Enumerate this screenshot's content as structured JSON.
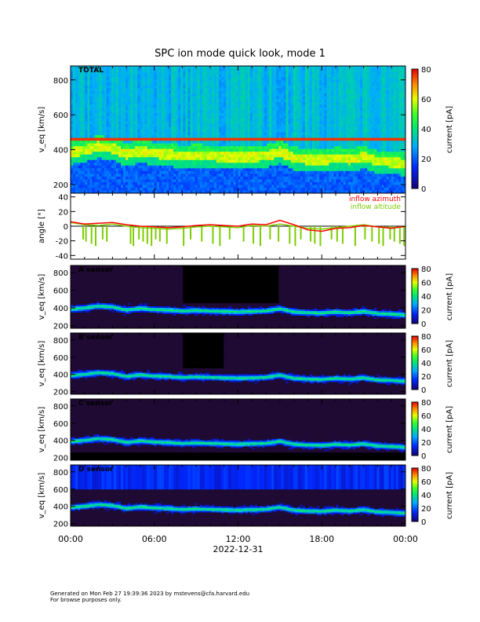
{
  "chart_data": {
    "type": "heatmap",
    "title": "SPC ion mode quick look, mode 1",
    "x_range_hours": [
      0,
      24
    ],
    "x_tick_labels": [
      "00:00",
      "06:00",
      "12:00",
      "18:00",
      "00:00"
    ],
    "date_label": "2022-12-31",
    "panels": [
      {
        "kind": "spectrogram",
        "label": "TOTAL",
        "ylabel": "v_eq [km/s]",
        "ylim": [
          150,
          880
        ],
        "yticks": [
          200,
          400,
          600,
          800
        ],
        "palette": "rainbow",
        "colorbar_label": "current [pA]",
        "colorbar_range": [
          0,
          80
        ],
        "colorbar_ticks": [
          0,
          20,
          40,
          60,
          80
        ],
        "peak_speed_kms": [
          {
            "t": 0,
            "v": 385
          },
          {
            "t": 1,
            "v": 400
          },
          {
            "t": 2,
            "v": 420
          },
          {
            "t": 3,
            "v": 410
          },
          {
            "t": 4,
            "v": 375
          },
          {
            "t": 5,
            "v": 395
          },
          {
            "t": 6,
            "v": 380
          },
          {
            "t": 7,
            "v": 375
          },
          {
            "t": 8,
            "v": 365
          },
          {
            "t": 9,
            "v": 370
          },
          {
            "t": 10,
            "v": 365
          },
          {
            "t": 11,
            "v": 360
          },
          {
            "t": 12,
            "v": 355
          },
          {
            "t": 13,
            "v": 360
          },
          {
            "t": 14,
            "v": 365
          },
          {
            "t": 15,
            "v": 390
          },
          {
            "t": 16,
            "v": 355
          },
          {
            "t": 17,
            "v": 345
          },
          {
            "t": 18,
            "v": 340
          },
          {
            "t": 19,
            "v": 355
          },
          {
            "t": 20,
            "v": 345
          },
          {
            "t": 21,
            "v": 360
          },
          {
            "t": 22,
            "v": 335
          },
          {
            "t": 23,
            "v": 330
          },
          {
            "t": 24,
            "v": 320
          }
        ]
      },
      {
        "kind": "angle",
        "ylabel": "angle [°]",
        "ylim": [
          -45,
          45
        ],
        "yticks": [
          -40,
          -20,
          0,
          20,
          40
        ],
        "legend": [
          {
            "name": "inflow azimuth",
            "color": "#ff0000"
          },
          {
            "name": "inflow altitude",
            "color": "#7ccd00"
          }
        ],
        "azimuth_deg": [
          {
            "t": 0,
            "v": 6
          },
          {
            "t": 1,
            "v": 3
          },
          {
            "t": 2,
            "v": 4
          },
          {
            "t": 3,
            "v": 5
          },
          {
            "t": 4,
            "v": 2
          },
          {
            "t": 5,
            "v": 0
          },
          {
            "t": 6,
            "v": -1
          },
          {
            "t": 7,
            "v": -2
          },
          {
            "t": 8,
            "v": -1
          },
          {
            "t": 9,
            "v": 1
          },
          {
            "t": 10,
            "v": 2
          },
          {
            "t": 11,
            "v": 1
          },
          {
            "t": 12,
            "v": 0
          },
          {
            "t": 13,
            "v": 3
          },
          {
            "t": 14,
            "v": 2
          },
          {
            "t": 15,
            "v": 8
          },
          {
            "t": 16,
            "v": 2
          },
          {
            "t": 17,
            "v": -5
          },
          {
            "t": 18,
            "v": -7
          },
          {
            "t": 19,
            "v": -3
          },
          {
            "t": 20,
            "v": -2
          },
          {
            "t": 21,
            "v": 1
          },
          {
            "t": 22,
            "v": -1
          },
          {
            "t": 23,
            "v": -3
          },
          {
            "t": 24,
            "v": 0
          }
        ],
        "altitude_deg": [
          {
            "t": 0,
            "v": 5
          },
          {
            "t": 1,
            "v": 2
          },
          {
            "t": 2,
            "v": 1
          },
          {
            "t": 3,
            "v": 3
          },
          {
            "t": 4,
            "v": 0
          },
          {
            "t": 5,
            "v": -2
          },
          {
            "t": 6,
            "v": -3
          },
          {
            "t": 7,
            "v": -4
          },
          {
            "t": 8,
            "v": -3
          },
          {
            "t": 9,
            "v": -1
          },
          {
            "t": 10,
            "v": 0
          },
          {
            "t": 11,
            "v": -1
          },
          {
            "t": 12,
            "v": -2
          },
          {
            "t": 13,
            "v": 1
          },
          {
            "t": 14,
            "v": 0
          },
          {
            "t": 15,
            "v": 3
          },
          {
            "t": 16,
            "v": 0
          },
          {
            "t": 17,
            "v": -3
          },
          {
            "t": 18,
            "v": -4
          },
          {
            "t": 19,
            "v": -2
          },
          {
            "t": 20,
            "v": 0
          },
          {
            "t": 21,
            "v": 2
          },
          {
            "t": 22,
            "v": -1
          },
          {
            "t": 23,
            "v": -2
          },
          {
            "t": 24,
            "v": -1
          }
        ],
        "altitude_dropouts_hours": [
          0.9,
          1.1,
          1.5,
          1.8,
          2.3,
          2.6,
          4.3,
          4.5,
          4.9,
          5.2,
          5.5,
          5.8,
          6.1,
          6.4,
          6.9,
          8.1,
          8.6,
          9.4,
          10.2,
          10.7,
          11.4,
          12.4,
          13.1,
          13.6,
          14.3,
          14.9,
          15.7,
          16.1,
          16.5,
          17.2,
          17.5,
          17.9,
          18.7,
          19.1,
          19.5,
          20.4,
          21.1,
          21.6,
          22.1,
          22.4,
          22.9,
          23.2,
          23.6,
          23.9
        ]
      },
      {
        "kind": "spectrogram",
        "label": "A sensor",
        "ylabel": "v_eq [km/s]",
        "ylim": [
          170,
          880
        ],
        "yticks": [
          200,
          400,
          600,
          800
        ],
        "palette": "dark",
        "colorbar_label": "current [pA]",
        "colorbar_range": [
          0,
          80
        ],
        "colorbar_ticks": [
          0,
          20,
          40,
          60,
          80
        ]
      },
      {
        "kind": "spectrogram",
        "label": "B sensor",
        "ylabel": "v_eq [km/s]",
        "ylim": [
          170,
          880
        ],
        "yticks": [
          200,
          400,
          600,
          800
        ],
        "palette": "dark",
        "colorbar_label": "current [pA]",
        "colorbar_range": [
          0,
          80
        ],
        "colorbar_ticks": [
          0,
          20,
          40,
          60,
          80
        ]
      },
      {
        "kind": "spectrogram",
        "label": "C sensor",
        "ylabel": "v_eq [km/s]",
        "ylim": [
          170,
          880
        ],
        "yticks": [
          200,
          400,
          600,
          800
        ],
        "palette": "dark",
        "colorbar_label": "current [pA]",
        "colorbar_range": [
          0,
          80
        ],
        "colorbar_ticks": [
          0,
          20,
          40,
          60,
          80
        ]
      },
      {
        "kind": "spectrogram",
        "label": "D sensor",
        "ylabel": "v_eq [km/s]",
        "ylim": [
          170,
          880
        ],
        "yticks": [
          200,
          400,
          600,
          800
        ],
        "palette": "dark",
        "colorbar_label": "current [pA]",
        "colorbar_range": [
          0,
          80
        ],
        "colorbar_ticks": [
          0,
          20,
          40,
          60,
          80
        ]
      }
    ]
  },
  "footer": {
    "line1": "Generated on Mon Feb 27 19:39:36 2023 by mstevens@cfa.harvard.edu",
    "line2": "For browse purposes only."
  }
}
